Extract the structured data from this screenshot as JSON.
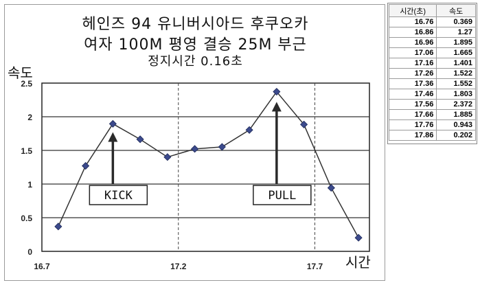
{
  "chart_data": {
    "type": "line",
    "title": "헤인즈 94 유니버시아드 후쿠오카",
    "subtitle": "여자 100M 평영 결승 25M 부근",
    "subtitle2": "정지시간 0.16초",
    "xlabel": "시간",
    "ylabel": "속도",
    "x": [
      16.76,
      16.86,
      16.96,
      17.06,
      17.16,
      17.26,
      17.36,
      17.46,
      17.56,
      17.66,
      17.76,
      17.86
    ],
    "values": [
      0.369,
      1.27,
      1.895,
      1.665,
      1.401,
      1.522,
      1.552,
      1.803,
      2.372,
      1.885,
      0.943,
      0.202
    ],
    "xlim": [
      16.7,
      17.9
    ],
    "ylim": [
      0,
      2.5
    ],
    "x_ticks": [
      "16.7",
      "17.2",
      "17.7"
    ],
    "y_ticks": [
      "0",
      "0.5",
      "1",
      "1.5",
      "2",
      "2.5"
    ],
    "grid": "horizontal",
    "annotations": [
      {
        "label": "KICK",
        "x": 16.96,
        "arrow_top": 1.75,
        "arrow_bottom": 1.0
      },
      {
        "label": "PULL",
        "x": 17.56,
        "arrow_top": 2.2,
        "arrow_bottom": 1.0
      }
    ],
    "line_color": "#333333",
    "marker_color": "#3c4a8c"
  },
  "table": {
    "headers": [
      "시간(초)",
      "속도"
    ],
    "rows": [
      [
        "16.76",
        "0.369"
      ],
      [
        "16.86",
        "1.27"
      ],
      [
        "16.96",
        "1.895"
      ],
      [
        "17.06",
        "1.665"
      ],
      [
        "17.16",
        "1.401"
      ],
      [
        "17.26",
        "1.522"
      ],
      [
        "17.36",
        "1.552"
      ],
      [
        "17.46",
        "1.803"
      ],
      [
        "17.56",
        "2.372"
      ],
      [
        "17.66",
        "1.885"
      ],
      [
        "17.76",
        "0.943"
      ],
      [
        "17.86",
        "0.202"
      ]
    ]
  }
}
